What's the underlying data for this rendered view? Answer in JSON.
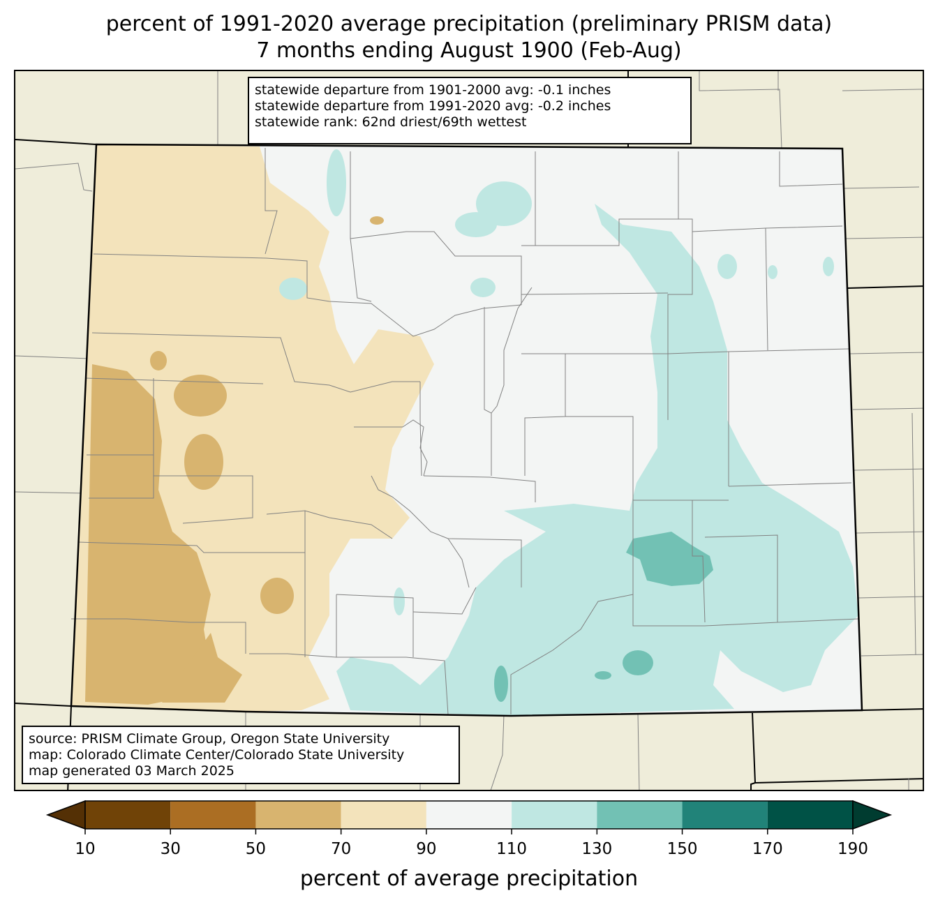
{
  "title_line1": "percent of 1991-2020 average precipitation (preliminary PRISM data)",
  "title_line2": "7 months ending August 1900 (Feb-Aug)",
  "stats": {
    "line1": "statewide departure from 1901-2000 avg: -0.1 inches",
    "line2": "statewide departure from 1991-2020 avg: -0.2 inches",
    "line3": "statewide rank: 62nd driest/69th wettest"
  },
  "source": {
    "line1": "source: PRISM Climate Group, Oregon State University",
    "line2": "map: Colorado Climate Center/Colorado State University",
    "line3": "map generated 03 March 2025"
  },
  "colorbar": {
    "label": "percent of average precipitation",
    "ticks": [
      "10",
      "30",
      "50",
      "70",
      "90",
      "110",
      "130",
      "150",
      "170",
      "190"
    ],
    "colors": [
      "#704307",
      "#ab6e23",
      "#d8b46f",
      "#f3e3bb",
      "#f3f5f4",
      "#bfe7e2",
      "#72c1b4",
      "#218379",
      "#005246"
    ],
    "under_color": "#543005",
    "over_color": "#003c30"
  },
  "colors": {
    "land_outside": "#efedda",
    "state_outline": "#000000",
    "county_lines": "#808080"
  }
}
